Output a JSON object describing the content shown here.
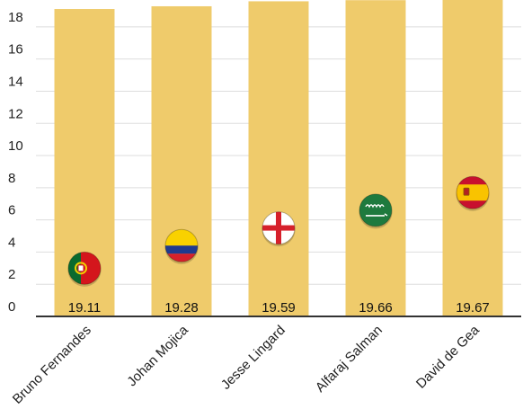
{
  "chart_data": {
    "type": "bar",
    "title": "",
    "xlabel": "",
    "ylabel": "",
    "categories": [
      "Bruno Fernandes",
      "Johan Mojica",
      "Jesse Lingard",
      "Alfaraj Salman",
      "David de Gea"
    ],
    "values": [
      19.11,
      19.28,
      19.59,
      19.66,
      19.67
    ],
    "value_labels": [
      "19.11",
      "19.28",
      "19.59",
      "19.66",
      "19.67"
    ],
    "ylim": [
      0,
      19.67
    ],
    "yticks": [
      0,
      2,
      4,
      6,
      8,
      10,
      12,
      14,
      16,
      18
    ],
    "ytick_labels": [
      "0",
      "2",
      "4",
      "6",
      "8",
      "10",
      "12",
      "14",
      "16",
      "18"
    ],
    "grid": true,
    "legend": "none",
    "bar_color": "#EFCB6B",
    "grid_color": "#DDDDDD",
    "axis_color": "#333333",
    "flag_icons": [
      {
        "name": "portugal-flag-icon",
        "level": 3
      },
      {
        "name": "colombia-flag-icon",
        "level": 4.4
      },
      {
        "name": "england-flag-icon",
        "level": 5.5
      },
      {
        "name": "saudi-arabia-flag-icon",
        "level": 6.6
      },
      {
        "name": "spain-flag-icon",
        "level": 7.7
      }
    ]
  }
}
